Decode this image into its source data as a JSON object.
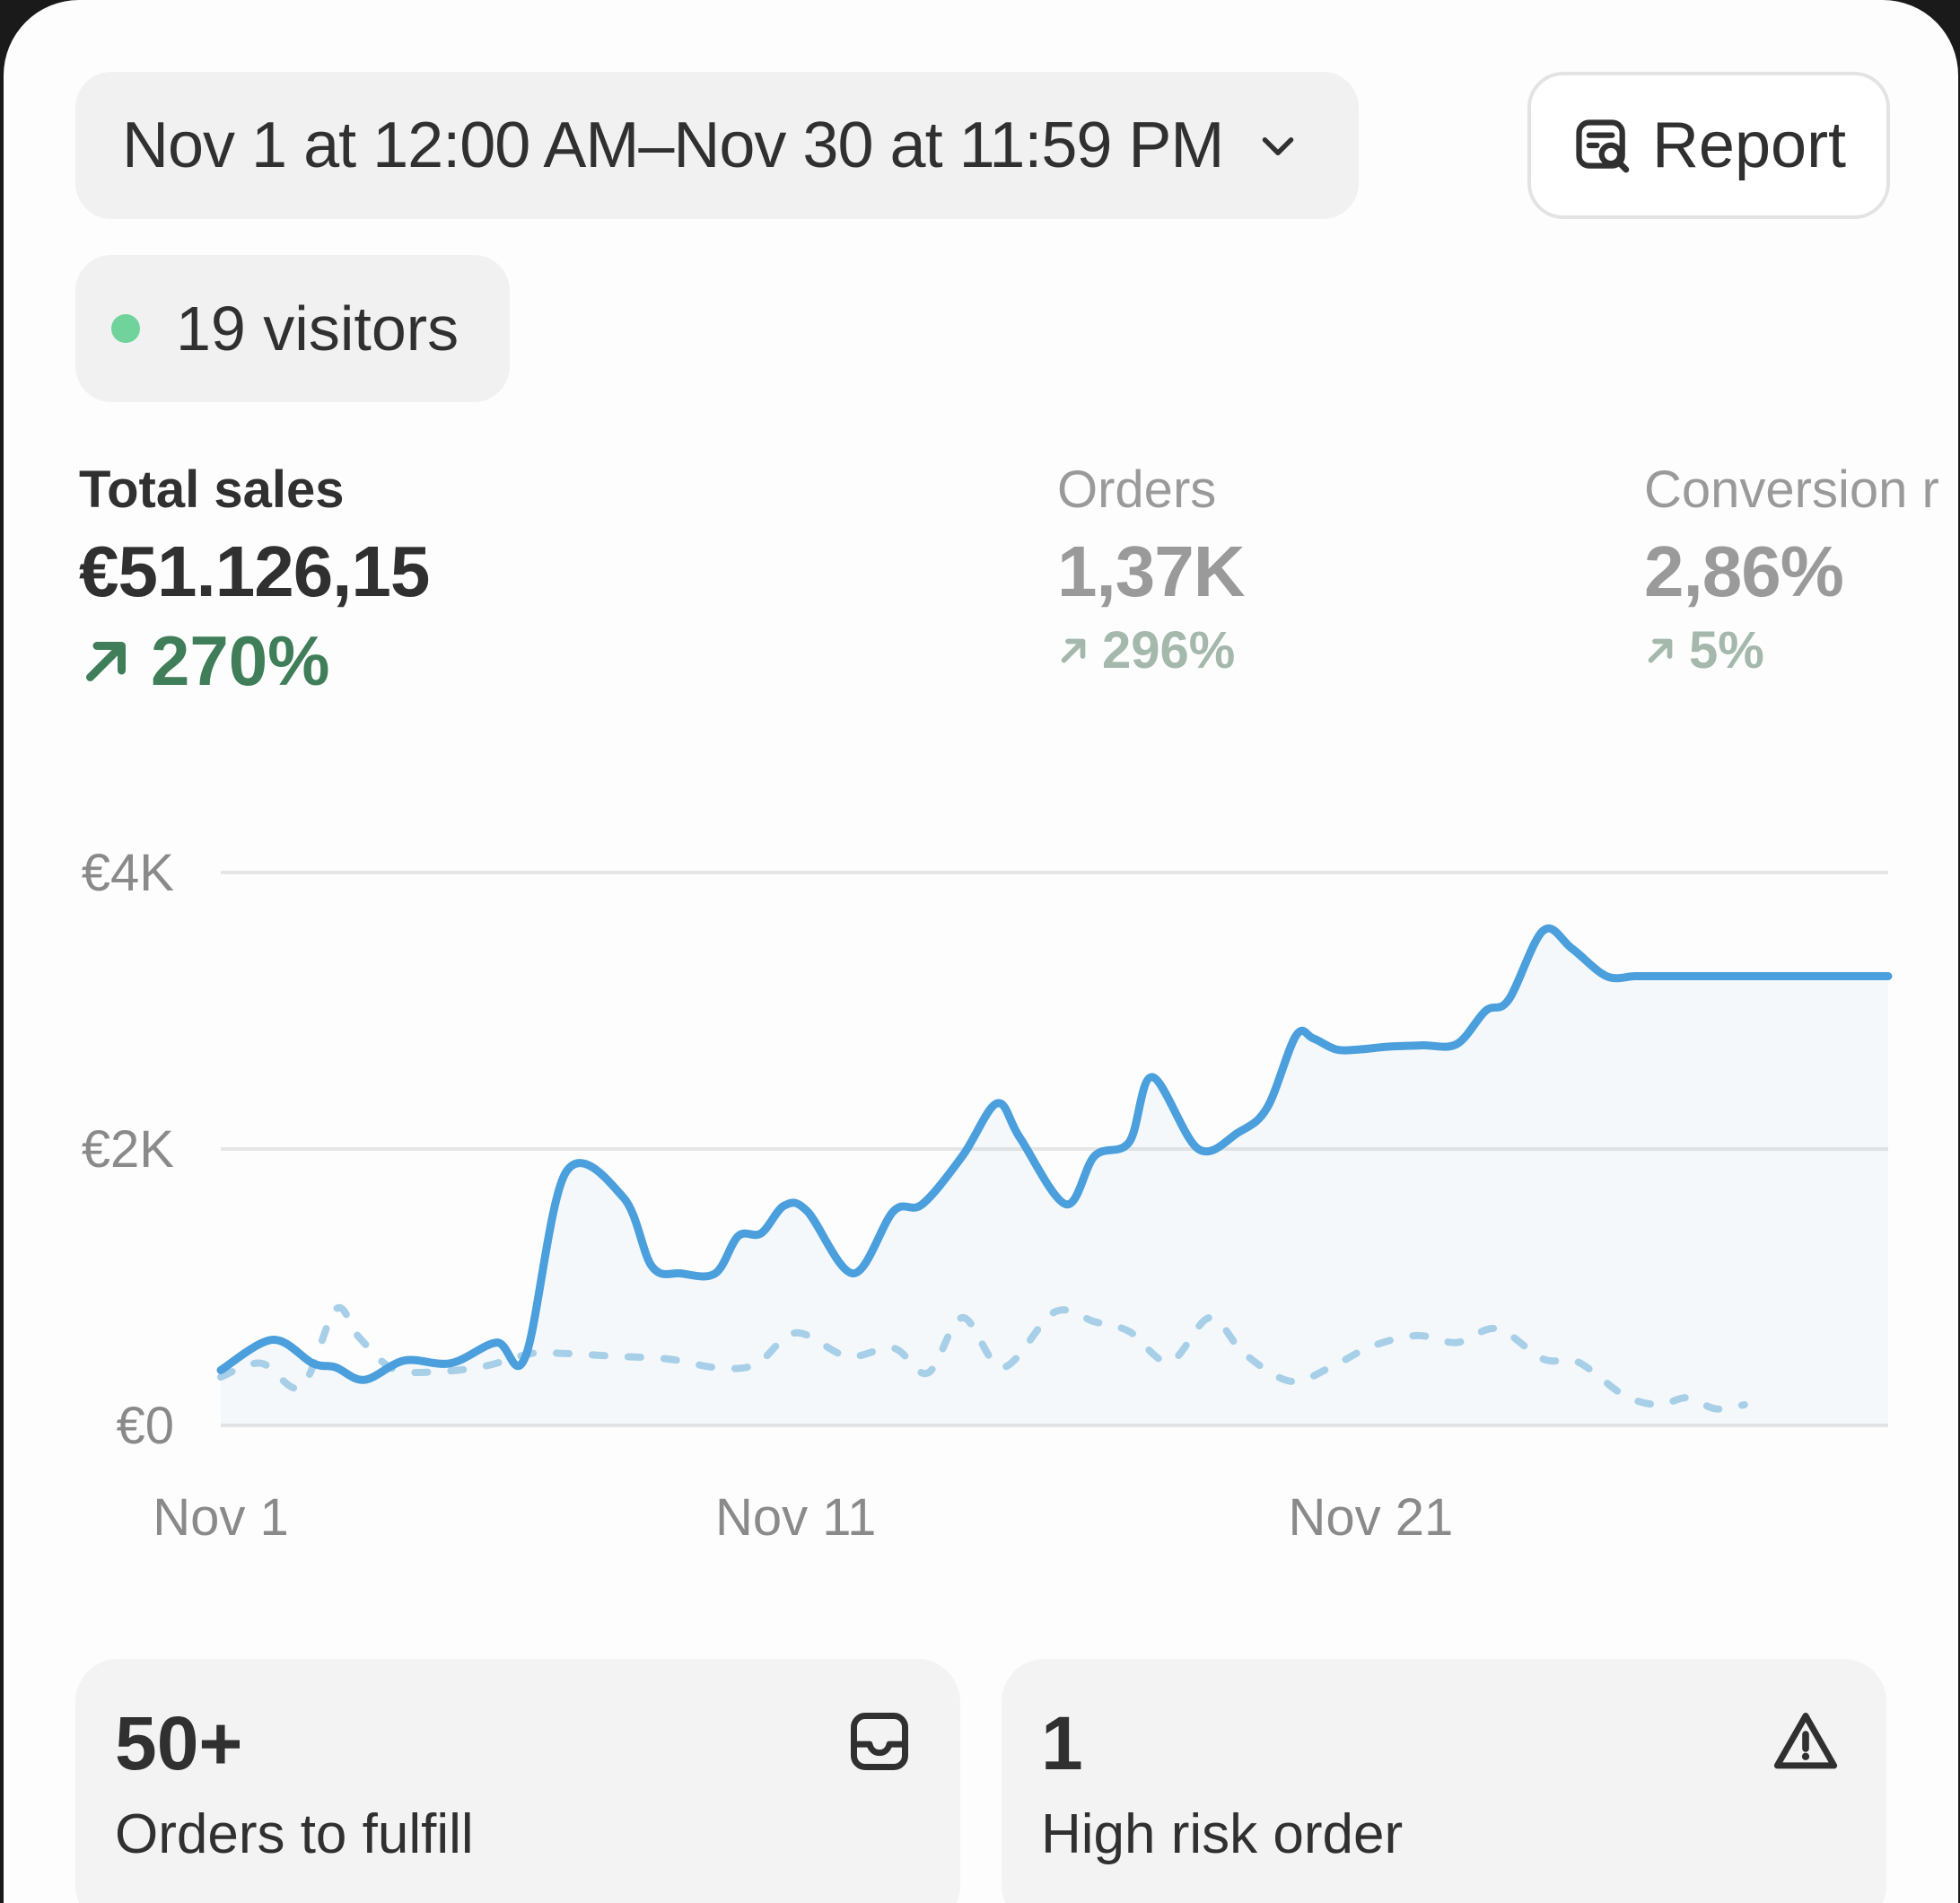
{
  "date_range": {
    "label": "Nov 1 at 12:00 AM–Nov 30 at 11:59 PM",
    "icon": "chevron-down-icon"
  },
  "report": {
    "label": "Report",
    "icon": "report-search-icon"
  },
  "visitors": {
    "label": "19 visitors",
    "status_color": "#6fd39b"
  },
  "metrics": {
    "total_sales": {
      "label": "Total sales",
      "value": "€51.126,15",
      "change": "270%",
      "direction": "up"
    },
    "orders": {
      "label": "Orders",
      "value": "1,37K",
      "change": "296%",
      "direction": "up"
    },
    "conversion": {
      "label": "Conversion r",
      "value": "2,86%",
      "change": "5%",
      "direction": "up"
    }
  },
  "colors": {
    "accent": "#4a9fdc",
    "positive": "#3f7e58",
    "positive_muted": "#a4b8ac",
    "muted_text": "#9a9a9a"
  },
  "chart_data": {
    "type": "line",
    "ylim": [
      0,
      4000
    ],
    "y_ticks": [
      "€0",
      "€2K",
      "€4K"
    ],
    "y_tick_values": [
      0,
      2000,
      4000
    ],
    "x_ticks": [
      "Nov 1",
      "Nov 11",
      "Nov 21"
    ],
    "x_tick_positions": [
      1,
      11,
      21
    ],
    "grid": true,
    "series": [
      {
        "style": "solid",
        "color": "#4a9fdc",
        "x": [
          1,
          1.9,
          2.6,
          3,
          3.5,
          4.2,
          5,
          5.8,
          6.3,
          7,
          8,
          8.5,
          9,
          9.6,
          10,
          10.4,
          10.8,
          11.2,
          12,
          12.7,
          13.2,
          13.9,
          14.5,
          14.9,
          15.7,
          16.2,
          16.8,
          17.2,
          18,
          18.7,
          19.2,
          19.7,
          20,
          20.4,
          20.8,
          21.3,
          21.9,
          22.5,
          23,
          23.4,
          24,
          24.5,
          25.1,
          25.6,
          26.1,
          26.6,
          27.4,
          28,
          28.4,
          28.7,
          29.1,
          29.6,
          30
        ],
        "y": [
          400,
          620,
          450,
          420,
          330,
          470,
          450,
          600,
          500,
          1830,
          1650,
          1150,
          1100,
          1100,
          1370,
          1390,
          1590,
          1550,
          1100,
          1550,
          1600,
          1950,
          2330,
          2080,
          1600,
          1950,
          2050,
          2520,
          2000,
          2120,
          2300,
          2820,
          2800,
          2720,
          2720,
          2740,
          2750,
          2760,
          3000,
          3080,
          3580,
          3450,
          3250,
          3250,
          3250,
          3250,
          3250,
          3250,
          3250,
          3250,
          3250,
          3250,
          3250
        ]
      },
      {
        "style": "dashed",
        "color": "#a7cfe8",
        "x": [
          1,
          1.7,
          2.4,
          3,
          3.4,
          4,
          4.8,
          5.6,
          6.4,
          7,
          7.9,
          8.8,
          9.6,
          10.3,
          11,
          11.9,
          12.7,
          13.3,
          13.9,
          14.6,
          15.5,
          16.2,
          16.8,
          17.5,
          18.2,
          18.8,
          19.6,
          20.3,
          21,
          21.8,
          22.5,
          23.2,
          24,
          24.6,
          25.4,
          26,
          26.5,
          27,
          27.5
        ],
        "y": [
          350,
          450,
          280,
          840,
          640,
          410,
          390,
          430,
          520,
          520,
          500,
          480,
          420,
          440,
          670,
          500,
          560,
          380,
          780,
          420,
          820,
          750,
          680,
          460,
          780,
          520,
          320,
          420,
          570,
          650,
          600,
          700,
          480,
          460,
          220,
          150,
          200,
          120,
          150
        ]
      }
    ]
  },
  "tasks": [
    {
      "count": "50+",
      "label": "Orders to fulfill",
      "icon": "inbox-icon"
    },
    {
      "count": "1",
      "label": "High risk order",
      "icon": "warning-icon"
    }
  ]
}
